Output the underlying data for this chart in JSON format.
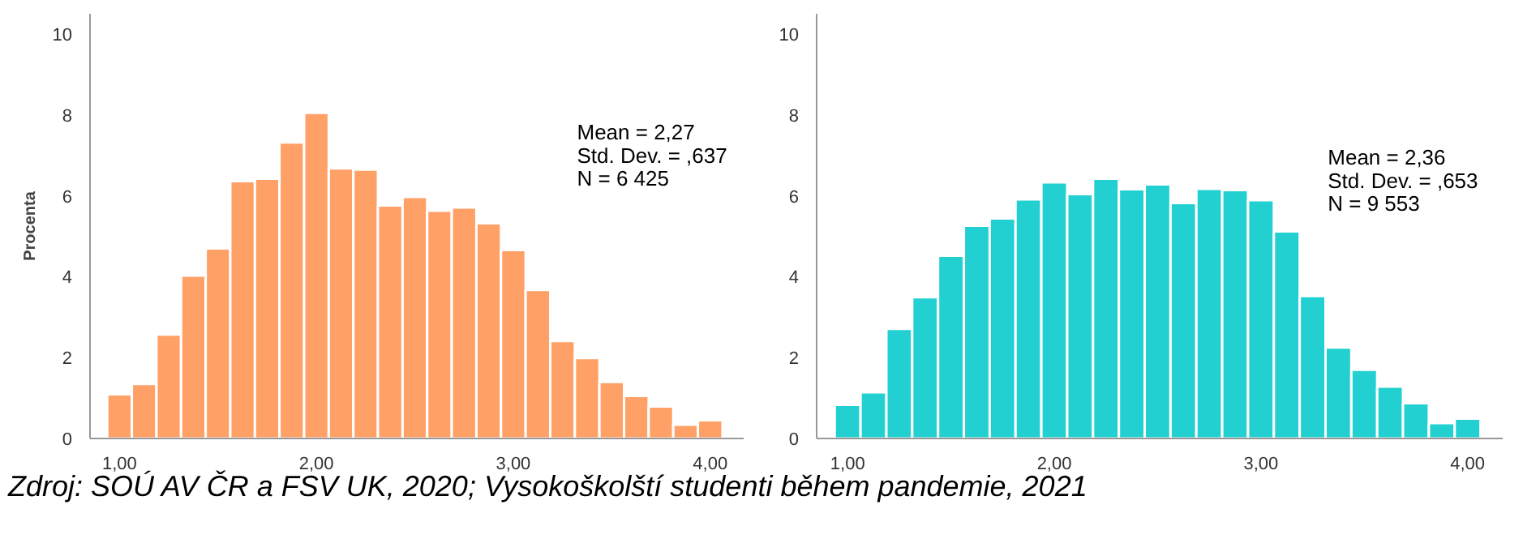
{
  "chart_data": [
    {
      "type": "histogram",
      "ylabel": "Procenta",
      "color": "#ffa066",
      "bins": [
        0.9375,
        1.0625,
        1.1875,
        1.3125,
        1.4375,
        1.5625,
        1.6875,
        1.8125,
        1.9375,
        2.0625,
        2.1875,
        2.3125,
        2.4375,
        2.5625,
        2.6875,
        2.8125,
        2.9375,
        3.0625,
        3.1875,
        3.3125,
        3.4375,
        3.5625,
        3.6875,
        3.8125,
        3.9375,
        4.0625
      ],
      "values": [
        1.09,
        1.35,
        2.57,
        4.03,
        4.7,
        6.36,
        6.42,
        7.32,
        8.05,
        6.68,
        6.65,
        5.76,
        5.97,
        5.63,
        5.71,
        5.32,
        4.66,
        3.67,
        2.41,
        1.99,
        1.4,
        1.05,
        0.79,
        0.34,
        0.45
      ],
      "xlim": [
        0.85,
        4.17
      ],
      "ylim": [
        0,
        10.5
      ],
      "xticks": [
        {
          "value": 1,
          "label": "1,00"
        },
        {
          "value": 2,
          "label": "2,00"
        },
        {
          "value": 3,
          "label": "3,00"
        },
        {
          "value": 4,
          "label": "4,00"
        }
      ],
      "yticks": [
        0,
        2,
        4,
        6,
        8,
        10
      ],
      "grid": false,
      "annotations": [
        "Mean = 2,27\nStd. Dev. = ,637\nN = 6 425",
        "Zdroj: SOÚ AV ČR a FSV UK, 2020; Vysokoškolští studenti během pandemie, 2021"
      ]
    },
    {
      "type": "histogram",
      "color": "#22d0d2",
      "bins": [
        0.9375,
        1.0625,
        1.1875,
        1.3125,
        1.4375,
        1.5625,
        1.6875,
        1.8125,
        1.9375,
        2.0625,
        2.1875,
        2.3125,
        2.4375,
        2.5625,
        2.6875,
        2.8125,
        2.9375,
        3.0625,
        3.1875,
        3.3125,
        3.4375,
        3.5625,
        3.6875,
        3.8125,
        3.9375,
        4.0625
      ],
      "values": [
        0.83,
        1.14,
        2.71,
        3.49,
        4.52,
        5.26,
        5.44,
        5.91,
        6.33,
        6.04,
        6.42,
        6.16,
        6.28,
        5.82,
        6.17,
        6.14,
        5.89,
        5.12,
        3.52,
        2.25,
        1.7,
        1.28,
        0.87,
        0.38,
        0.49
      ],
      "xlim": [
        0.85,
        4.17
      ],
      "ylim": [
        0,
        10.5
      ],
      "xticks": [
        {
          "value": 1,
          "label": "1,00"
        },
        {
          "value": 2,
          "label": "2,00"
        },
        {
          "value": 3,
          "label": "3,00"
        },
        {
          "value": 4,
          "label": "4,00"
        }
      ],
      "yticks": [
        0,
        2,
        4,
        6,
        8,
        10
      ],
      "grid": false,
      "annotations": [
        "Mean = 2,36\nStd. Dev. = ,653\nN = 9 553"
      ]
    }
  ]
}
